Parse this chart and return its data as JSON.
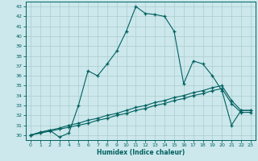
{
  "xlabel": "Humidex (Indice chaleur)",
  "bg_color": "#cce8ec",
  "line_color": "#006060",
  "grid_color": "#aacccc",
  "xlim": [
    -0.5,
    23.5
  ],
  "ylim": [
    29.5,
    43.5
  ],
  "yticks": [
    30,
    31,
    32,
    33,
    34,
    35,
    36,
    37,
    38,
    39,
    40,
    41,
    42,
    43
  ],
  "xticks": [
    0,
    1,
    2,
    3,
    4,
    5,
    6,
    7,
    8,
    9,
    10,
    11,
    12,
    13,
    14,
    15,
    16,
    17,
    18,
    19,
    20,
    21,
    22,
    23
  ],
  "series1_x": [
    0,
    1,
    2,
    3,
    4,
    5,
    6,
    7,
    8,
    9,
    10,
    11,
    12,
    13,
    14,
    15,
    16,
    17,
    18,
    19,
    20,
    21,
    22,
    23
  ],
  "series1_y": [
    30.0,
    30.3,
    30.5,
    29.8,
    30.2,
    33.0,
    36.5,
    36.0,
    37.2,
    38.5,
    40.5,
    43.0,
    42.3,
    42.2,
    42.0,
    40.5,
    35.2,
    37.5,
    37.2,
    36.0,
    34.5,
    31.0,
    32.5,
    32.5
  ],
  "series2_x": [
    0,
    1,
    2,
    3,
    4,
    5,
    6,
    7,
    8,
    9,
    10,
    11,
    12,
    13,
    14,
    15,
    16,
    17,
    18,
    19,
    20,
    21,
    22,
    23
  ],
  "series2_y": [
    30.0,
    30.25,
    30.5,
    30.7,
    31.0,
    31.2,
    31.5,
    31.7,
    32.0,
    32.2,
    32.5,
    32.8,
    33.0,
    33.3,
    33.5,
    33.8,
    34.0,
    34.3,
    34.5,
    34.8,
    35.0,
    33.5,
    32.5,
    32.5
  ],
  "series3_x": [
    0,
    1,
    2,
    3,
    4,
    5,
    6,
    7,
    8,
    9,
    10,
    11,
    12,
    13,
    14,
    15,
    16,
    17,
    18,
    19,
    20,
    21,
    22,
    23
  ],
  "series3_y": [
    30.0,
    30.2,
    30.4,
    30.6,
    30.8,
    31.0,
    31.2,
    31.5,
    31.7,
    32.0,
    32.2,
    32.5,
    32.7,
    33.0,
    33.2,
    33.5,
    33.7,
    34.0,
    34.2,
    34.5,
    34.7,
    33.2,
    32.3,
    32.3
  ]
}
